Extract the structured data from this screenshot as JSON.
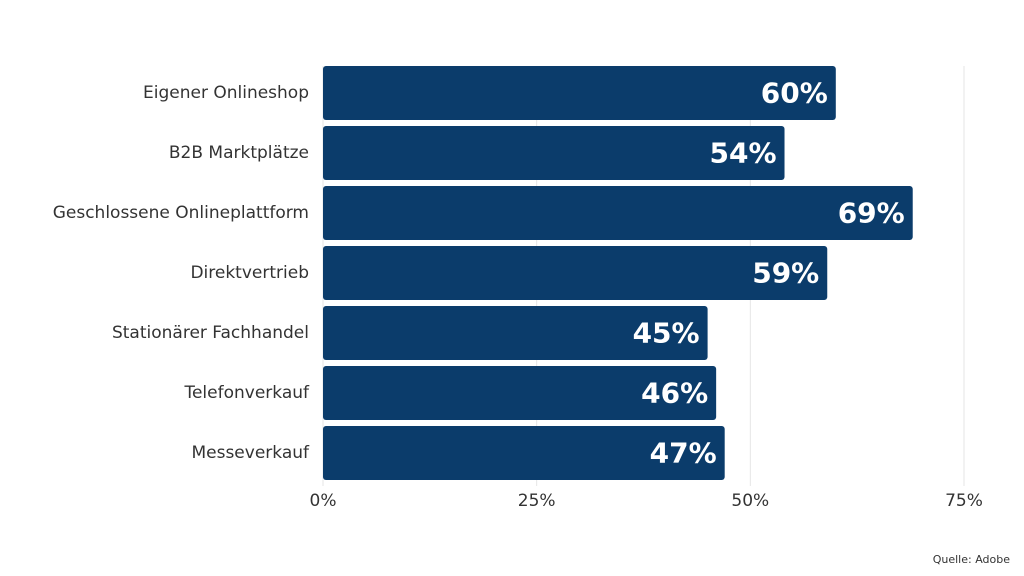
{
  "chart_data": {
    "type": "bar",
    "orientation": "horizontal",
    "categories": [
      "Eigener Onlineshop",
      "B2B Marktplätze",
      "Geschlossene Onlineplattform",
      "Direktvertrieb",
      "Stationärer Fachhandel",
      "Telefonverkauf",
      "Messeverkauf"
    ],
    "values": [
      60,
      54,
      69,
      59,
      45,
      46,
      47
    ],
    "value_labels": [
      "60%",
      "54%",
      "69%",
      "59%",
      "45%",
      "46%",
      "47%"
    ],
    "xlim": [
      0,
      75
    ],
    "xticks": [
      0,
      25,
      50,
      75
    ],
    "xtick_labels": [
      "0%",
      "25%",
      "50%",
      "75%"
    ],
    "grid": "vertical",
    "bar_color": "#0b3c6b",
    "title": "",
    "xlabel": "",
    "ylabel": ""
  },
  "source": "Quelle: Adobe"
}
